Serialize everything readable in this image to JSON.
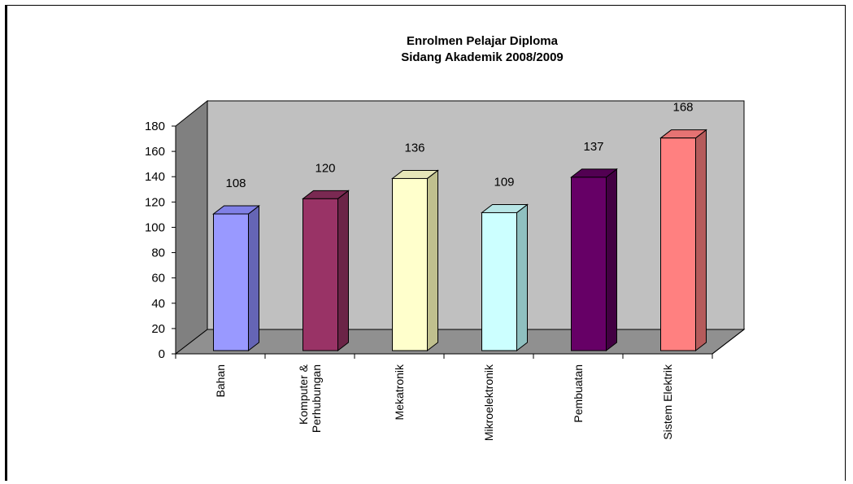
{
  "chart_data": {
    "type": "bar",
    "style": "3d-column",
    "title": [
      "Enrolmen Pelajar Diploma",
      "Sidang Akademik 2008/2009"
    ],
    "categories": [
      [
        "Bahan"
      ],
      [
        "Komputer &",
        "Perhubungan"
      ],
      [
        "Mekatronik"
      ],
      [
        "Mikroelektronik"
      ],
      [
        "Pembuatan"
      ],
      [
        "Sistem Elektrik"
      ]
    ],
    "values": [
      108,
      120,
      136,
      109,
      137,
      168
    ],
    "data_labels": [
      "108",
      "120",
      "136",
      "109",
      "137",
      "168"
    ],
    "ylim": [
      0,
      180
    ],
    "y_ticks": [
      0,
      20,
      40,
      60,
      80,
      100,
      120,
      140,
      160,
      180
    ],
    "grid": false,
    "legend": "none",
    "colors": {
      "bars_front": [
        "#9999ff",
        "#993366",
        "#ffffcc",
        "#ccffff",
        "#660066",
        "#ff8080"
      ],
      "bars_side": [
        "#6565b5",
        "#6b2447",
        "#c0c08e",
        "#8fc0c0",
        "#420042",
        "#b55b5b"
      ],
      "bars_top": [
        "#8080e6",
        "#7a2952",
        "#e6e6b8",
        "#b8e6e6",
        "#520052",
        "#e67373"
      ],
      "back_wall": "#c0c0c0",
      "side_wall": "#808080",
      "floor": "#909090"
    }
  }
}
